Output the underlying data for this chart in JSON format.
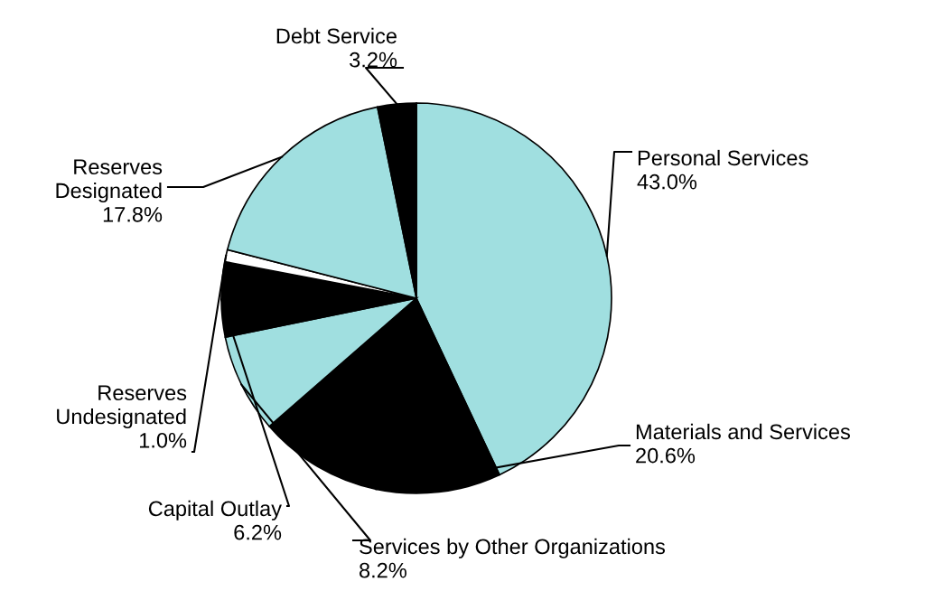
{
  "chart_data": {
    "type": "pie",
    "categories": [
      "Personal Services",
      "Materials and Services",
      "Services by Other Organizations",
      "Capital Outlay",
      "Reserves\nUndesignated",
      "Reserves\nDesignated",
      "Debt Service"
    ],
    "values": [
      43.0,
      20.6,
      8.2,
      6.2,
      1.0,
      17.8,
      3.2
    ],
    "value_labels": [
      "43.0%",
      "20.6%",
      "8.2%",
      "6.2%",
      "1.0%",
      "17.8%",
      "3.2%"
    ],
    "colors": [
      "#a0dfe0",
      "#000000",
      "#a0dfe0",
      "#000000",
      "#ffffff",
      "#a0dfe0",
      "#000000"
    ]
  }
}
